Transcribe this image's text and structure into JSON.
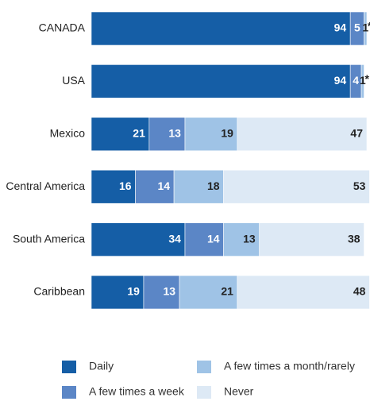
{
  "chart_data": {
    "type": "stacked-bar-horizontal",
    "categories": [
      "CANADA",
      "USA",
      "Mexico",
      "Central America",
      "South America",
      "Caribbean"
    ],
    "xlim": [
      0,
      100
    ],
    "series": [
      {
        "name": "Daily",
        "color": "#155ea6",
        "values": [
          94,
          94,
          21,
          16,
          34,
          19
        ]
      },
      {
        "name": "A few times a week",
        "color": "#5b86c6",
        "values": [
          5,
          4,
          13,
          14,
          14,
          13
        ]
      },
      {
        "name": "A few times a month/rarely",
        "color": "#9fc3e6",
        "values": [
          1,
          1,
          19,
          18,
          13,
          21
        ]
      },
      {
        "name": "Never",
        "color": "#dde9f5",
        "values": [
          0,
          0,
          47,
          53,
          38,
          48
        ],
        "value_labels": [
          "*",
          "*",
          "47",
          "53",
          "38",
          "48"
        ]
      }
    ]
  }
}
